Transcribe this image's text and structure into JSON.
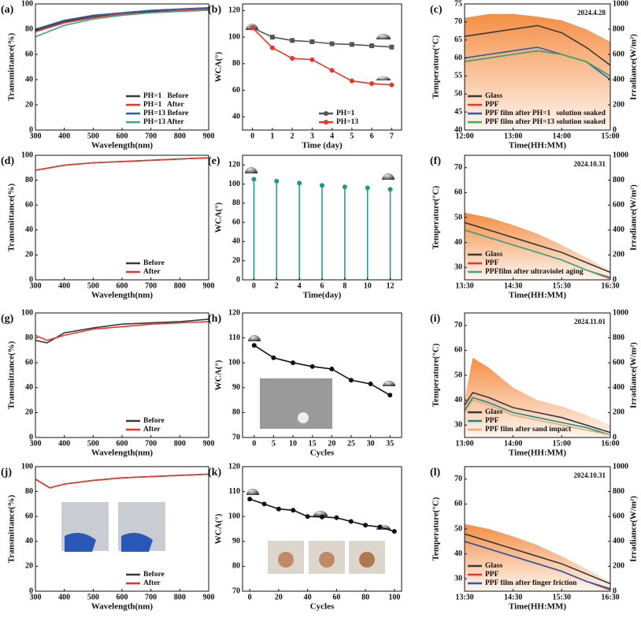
{
  "chart_data": [
    {
      "type": "line",
      "panel": "(a)",
      "x_label": "Wavelength(nm)",
      "y_label": "Transmittance(%)",
      "x": [
        300,
        400,
        500,
        600,
        700,
        800,
        900
      ],
      "xlim": [
        300,
        900
      ],
      "xticks": [
        300,
        400,
        500,
        600,
        700,
        800,
        900
      ],
      "ylim": [
        0,
        100
      ],
      "yticks": [
        0,
        20,
        40,
        60,
        80,
        100
      ],
      "legend": "lower right",
      "series": [
        {
          "name": "PH=1   Before",
          "color": "#3a3a3a",
          "values": [
            79,
            86,
            90,
            92,
            94,
            95,
            96
          ]
        },
        {
          "name": "PH=1   After",
          "color": "#e8372a",
          "values": [
            78,
            85,
            89,
            92,
            93,
            95,
            96
          ]
        },
        {
          "name": "PH=13 Before",
          "color": "#2a5caa",
          "values": [
            80,
            87,
            91,
            93,
            95,
            96,
            97
          ]
        },
        {
          "name": "PH=13 After",
          "color": "#3aaa8a",
          "values": [
            74,
            83,
            88,
            91,
            93,
            94,
            95
          ]
        }
      ]
    },
    {
      "type": "line",
      "panel": "(b)",
      "x_label": "Time (day)",
      "y_label": "WCA(°)",
      "markers": true,
      "x": [
        0,
        1,
        2,
        3,
        4,
        5,
        6,
        7
      ],
      "xlim": [
        -0.5,
        7.5
      ],
      "xticks": [
        0,
        1,
        2,
        3,
        4,
        5,
        6,
        7
      ],
      "ylim": [
        30,
        125
      ],
      "yticks": [
        40,
        60,
        80,
        100,
        120
      ],
      "legend": "lower right",
      "series": [
        {
          "name": "PH=1",
          "color": "#555555",
          "values": [
            107,
            100,
            97.5,
            96.5,
            95,
            94.5,
            93.5,
            92.5
          ]
        },
        {
          "name": "PH=13",
          "color": "#e8372a",
          "values": [
            107,
            92,
            84,
            83,
            75,
            67,
            65,
            64
          ]
        }
      ]
    },
    {
      "type": "line",
      "panel": "(c)",
      "x_label": "Time(HH:MM)",
      "y_label": "Temperature(°C)",
      "y2_label": "Irradiance(W/m²)",
      "annotation": "2024.4.28",
      "x": [
        720,
        750,
        780,
        810,
        840,
        870,
        900
      ],
      "xlim": [
        720,
        900
      ],
      "xticks": [
        {
          "value": 720,
          "label": "12:00"
        },
        {
          "value": 780,
          "label": "13:00"
        },
        {
          "value": 840,
          "label": "14:00"
        },
        {
          "value": 900,
          "label": "15:00"
        }
      ],
      "ylim": [
        40,
        75
      ],
      "yticks": [
        40,
        45,
        50,
        55,
        60,
        65,
        70,
        75
      ],
      "y2lim": [
        0,
        1000
      ],
      "y2ticks": [
        0,
        200,
        400,
        600,
        800,
        1000
      ],
      "legend": "lower left",
      "series": [
        {
          "color": "#f4883a",
          "axis": "y2",
          "values": [
            890,
            920,
            920,
            900,
            870,
            800,
            700
          ]
        },
        {
          "name": "Glass",
          "color": "#3a3a3a",
          "values": [
            66,
            67,
            68,
            69,
            67,
            63,
            58
          ]
        },
        {
          "name": "PPF",
          "color": "#e8372a",
          "values": [
            59,
            60,
            61,
            62,
            61,
            59,
            55
          ]
        },
        {
          "name": "PPF film after PH=1   solution soaked",
          "color": "#2a5caa",
          "values": [
            60,
            61,
            62,
            63,
            61,
            59,
            54
          ]
        },
        {
          "name": "PPF film after PH=13 solution soaked",
          "color": "#3aaa6a",
          "values": [
            59,
            60,
            61,
            62,
            61,
            59,
            55
          ]
        }
      ]
    },
    {
      "type": "line",
      "panel": "(d)",
      "x_label": "Wavelength(nm)",
      "y_label": "Transmittance(%)",
      "x": [
        300,
        400,
        500,
        600,
        700,
        800,
        900
      ],
      "xlim": [
        300,
        900
      ],
      "xticks": [
        300,
        400,
        500,
        600,
        700,
        800,
        900
      ],
      "ylim": [
        0,
        100
      ],
      "yticks": [
        0,
        20,
        40,
        60,
        80,
        100
      ],
      "legend": "lower right",
      "series": [
        {
          "name": "Before",
          "color": "#3a3a3a",
          "values": [
            88,
            92,
            94,
            95,
            96,
            97,
            98
          ]
        },
        {
          "name": "After",
          "color": "#e8372a",
          "values": [
            88,
            92,
            94,
            95,
            96,
            97,
            98
          ]
        }
      ]
    },
    {
      "type": "stem",
      "panel": "(e)",
      "x_label": "Time(day)",
      "y_label": "WCA(°)",
      "x": [
        0,
        2,
        4,
        6,
        8,
        10,
        12
      ],
      "xlim": [
        -1,
        13
      ],
      "xticks": [
        0,
        2,
        4,
        6,
        8,
        10,
        12
      ],
      "ylim": [
        0,
        130
      ],
      "yticks": [
        0,
        20,
        40,
        60,
        80,
        100,
        120
      ],
      "series": [
        {
          "color": "#1a9a8a",
          "values": [
            105,
            103,
            101,
            98.5,
            97,
            96,
            94.5
          ]
        }
      ]
    },
    {
      "type": "line",
      "panel": "(f)",
      "x_label": "Time(HH:MM)",
      "y_label": "Temperature(°C)",
      "y2_label": "Irradiance(W/m²)",
      "annotation": "2024.10.31",
      "x": [
        810,
        840,
        870,
        900,
        930,
        960,
        990
      ],
      "xlim": [
        810,
        990
      ],
      "xticks": [
        {
          "value": 810,
          "label": "13:30"
        },
        {
          "value": 870,
          "label": "14:30"
        },
        {
          "value": 930,
          "label": "15:30"
        },
        {
          "value": 990,
          "label": "16:30"
        }
      ],
      "ylim": [
        25,
        75
      ],
      "yticks": [
        30,
        40,
        50,
        60,
        70
      ],
      "y2lim": [
        0,
        1000
      ],
      "y2ticks": [
        0,
        200,
        400,
        600,
        800,
        1000
      ],
      "legend": "lower left",
      "series": [
        {
          "color": "#f4883a",
          "axis": "y2",
          "values": [
            540,
            500,
            440,
            370,
            280,
            180,
            80
          ]
        },
        {
          "name": "Glass",
          "color": "#3a3a3a",
          "values": [
            48,
            45,
            42,
            39,
            36,
            32,
            28
          ]
        },
        {
          "name": "PPF",
          "color": "#e8372a",
          "values": [
            45,
            42,
            39,
            36,
            33,
            29,
            25.5
          ]
        },
        {
          "name": "PPFfilm after ultraviolet aging",
          "color": "#3aaa8a",
          "values": [
            45,
            42,
            39,
            36,
            33,
            29,
            26
          ]
        }
      ]
    },
    {
      "type": "line",
      "panel": "(g)",
      "x_label": "Wavelength(nm)",
      "y_label": "Transmittance(%)",
      "x": [
        300,
        340,
        400,
        500,
        600,
        700,
        800,
        900
      ],
      "xlim": [
        300,
        900
      ],
      "xticks": [
        300,
        400,
        500,
        600,
        700,
        800,
        900
      ],
      "ylim": [
        0,
        100
      ],
      "yticks": [
        0,
        20,
        40,
        60,
        80,
        100
      ],
      "legend": "lower right",
      "series": [
        {
          "name": "Before",
          "color": "#3a3a3a",
          "values": [
            78,
            76,
            84,
            88,
            91,
            92,
            93,
            95
          ]
        },
        {
          "name": "After",
          "color": "#e8372a",
          "values": [
            82,
            78,
            82,
            87,
            89,
            91,
            92,
            93
          ]
        }
      ]
    },
    {
      "type": "line",
      "panel": "(h)",
      "x_label": "Cycles",
      "y_label": "WCA(°)",
      "markers": true,
      "x": [
        0,
        5,
        10,
        15,
        20,
        25,
        30,
        35
      ],
      "xlim": [
        -3,
        38
      ],
      "xticks": [
        0,
        5,
        10,
        15,
        20,
        25,
        30,
        35
      ],
      "ylim": [
        70,
        120
      ],
      "yticks": [
        70,
        80,
        90,
        100,
        110,
        120
      ],
      "series": [
        {
          "color": "#111111",
          "values": [
            107,
            102,
            100,
            98.5,
            97.5,
            93,
            91.5,
            87
          ]
        }
      ]
    },
    {
      "type": "line",
      "panel": "(i)",
      "x_label": "Time(HH:MM)",
      "y_label": "Temperature(°C)",
      "y2_label": "Irradiance(W/m²)",
      "annotation": "2024.11.01",
      "x": [
        780,
        790,
        810,
        840,
        870,
        900,
        930,
        960
      ],
      "xlim": [
        780,
        960
      ],
      "xticks": [
        {
          "value": 780,
          "label": "13:00"
        },
        {
          "value": 840,
          "label": "14:00"
        },
        {
          "value": 900,
          "label": "15:00"
        },
        {
          "value": 960,
          "label": "16:00"
        }
      ],
      "ylim": [
        25,
        75
      ],
      "yticks": [
        30,
        40,
        50,
        60,
        70
      ],
      "y2lim": [
        0,
        1000
      ],
      "y2ticks": [
        0,
        200,
        400,
        600,
        800,
        1000
      ],
      "legend": "lower left",
      "series": [
        {
          "color": "#f4883a",
          "axis": "y2",
          "values": [
            300,
            640,
            560,
            400,
            300,
            250,
            180,
            100
          ]
        },
        {
          "name": "Glass",
          "color": "#3a3a3a",
          "values": [
            38,
            43,
            41,
            37,
            35,
            33,
            30,
            27
          ]
        },
        {
          "name": "PPF",
          "color": "#1a8a8a",
          "values": [
            36,
            41,
            39,
            35,
            33,
            31,
            29,
            26
          ]
        },
        {
          "name": "PPF film after sand impact",
          "color": "#e8a878",
          "values": [
            35,
            40,
            38,
            34,
            32,
            30,
            28,
            26
          ]
        }
      ]
    },
    {
      "type": "line",
      "panel": "(j)",
      "x_label": "Wavelength(nm)",
      "y_label": "Transmittance(%)",
      "x": [
        300,
        350,
        400,
        500,
        600,
        700,
        800,
        900
      ],
      "xlim": [
        300,
        900
      ],
      "xticks": [
        300,
        400,
        500,
        600,
        700,
        800,
        900
      ],
      "ylim": [
        0,
        100
      ],
      "yticks": [
        0,
        20,
        40,
        60,
        80,
        100
      ],
      "legend": "lower right",
      "series": [
        {
          "name": "Before",
          "color": "#3a3a3a",
          "values": [
            90,
            83,
            86,
            89,
            91,
            92,
            93,
            94
          ]
        },
        {
          "name": "After",
          "color": "#e8372a",
          "values": [
            90,
            83,
            86,
            89,
            91,
            92,
            93,
            94
          ]
        }
      ]
    },
    {
      "type": "line",
      "panel": "(k)",
      "x_label": "Cycles",
      "y_label": "WCA(°)",
      "markers": true,
      "x": [
        0,
        10,
        20,
        30,
        40,
        50,
        60,
        70,
        80,
        90,
        100
      ],
      "xlim": [
        -5,
        105
      ],
      "xticks": [
        0,
        20,
        40,
        60,
        80,
        100
      ],
      "ylim": [
        70,
        120
      ],
      "yticks": [
        70,
        80,
        90,
        100,
        110,
        120
      ],
      "series": [
        {
          "color": "#111111",
          "values": [
            107,
            105,
            103,
            102.5,
            100,
            99.8,
            99.5,
            98,
            96.5,
            95.8,
            94
          ]
        }
      ]
    },
    {
      "type": "line",
      "panel": "(l)",
      "x_label": "Time(HH:MM)",
      "y_label": "Temperature(°C)",
      "y2_label": "Irradiance(W/m²)",
      "annotation": "2024.10.31",
      "x": [
        810,
        840,
        870,
        900,
        930,
        960,
        990
      ],
      "xlim": [
        810,
        990
      ],
      "xticks": [
        {
          "value": 810,
          "label": "13:30"
        },
        {
          "value": 870,
          "label": "14:30"
        },
        {
          "value": 930,
          "label": "15:30"
        },
        {
          "value": 990,
          "label": "16:30"
        }
      ],
      "ylim": [
        25,
        75
      ],
      "yticks": [
        30,
        40,
        50,
        60,
        70
      ],
      "y2lim": [
        0,
        1000
      ],
      "y2ticks": [
        0,
        200,
        400,
        600,
        800,
        1000
      ],
      "legend": "lower left",
      "series": [
        {
          "color": "#f4883a",
          "axis": "y2",
          "values": [
            540,
            500,
            440,
            370,
            280,
            180,
            80
          ]
        },
        {
          "name": "Glass",
          "color": "#3a3a3a",
          "values": [
            48,
            45,
            42,
            39,
            36,
            32,
            28
          ]
        },
        {
          "name": "PPF",
          "color": "#e8372a",
          "values": [
            45,
            42,
            39,
            36,
            33,
            29,
            25.5
          ]
        },
        {
          "name": "PPF film after finger friction",
          "color": "#2a5caa",
          "values": [
            45,
            42,
            39,
            36,
            33,
            29,
            26
          ]
        }
      ]
    }
  ]
}
